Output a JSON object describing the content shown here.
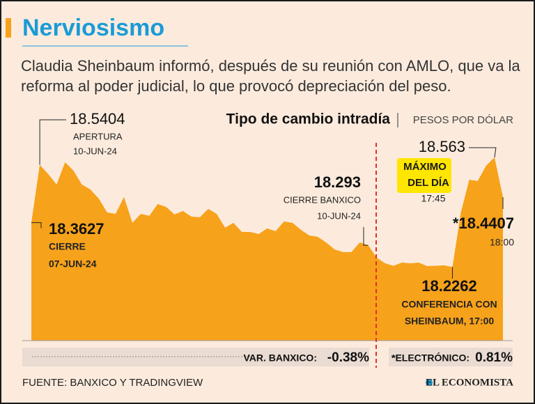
{
  "chart_data": {
    "type": "area",
    "title": "Nerviosismo",
    "subtitle": "Claudia Sheinbaum informó, después de su reunión con AMLO, que va la reforma al poder judicial, lo que provocó depreciación del peso.",
    "chart_title": "Tipo de cambio intradía",
    "unit": "PESOS POR DÓLAR",
    "color": "#f7a21b",
    "ylim": [
      18.0,
      18.7
    ],
    "values": [
      18.3627,
      18.5404,
      18.5118,
      18.4797,
      18.5482,
      18.5225,
      18.4797,
      18.4647,
      18.4368,
      18.394,
      18.3897,
      18.4411,
      18.3619,
      18.3897,
      18.3833,
      18.4197,
      18.4111,
      18.3876,
      18.3983,
      18.3812,
      18.379,
      18.4047,
      18.3897,
      18.3469,
      18.3619,
      18.334,
      18.334,
      18.3276,
      18.3448,
      18.3362,
      18.3662,
      18.3619,
      18.3405,
      18.3233,
      18.3191,
      18.3019,
      18.2805,
      18.272,
      18.272,
      18.3019,
      18.293,
      18.2548,
      18.2377,
      18.23,
      18.2398,
      18.2377,
      18.2398,
      18.229,
      18.23,
      18.2313,
      18.2262,
      18.394,
      18.4946,
      18.4904,
      18.5375,
      18.563,
      18.4407
    ],
    "value_labels": [
      null,
      null,
      null,
      null,
      null,
      null,
      null,
      null,
      null,
      null,
      null,
      null,
      null,
      null,
      null,
      null,
      null,
      null,
      null,
      null,
      null,
      null,
      null,
      null,
      null,
      null,
      null,
      null,
      null,
      null,
      null,
      null,
      null,
      null,
      null,
      null,
      null,
      null,
      null,
      null,
      null,
      null,
      null,
      null,
      null,
      null,
      null,
      null,
      null,
      null,
      null,
      null,
      null,
      null,
      null,
      null,
      "*18.4407"
    ],
    "notes": [
      [
        "CIERRE",
        "07-JUN-24"
      ],
      [
        "APERTURA",
        "10-JUN-24"
      ],
      null,
      null,
      null,
      null,
      null,
      null,
      null,
      null,
      null,
      null,
      null,
      null,
      null,
      null,
      null,
      null,
      null,
      null,
      null,
      null,
      null,
      null,
      null,
      null,
      null,
      null,
      null,
      null,
      null,
      null,
      null,
      null,
      null,
      null,
      null,
      null,
      null,
      null,
      [
        "CIERRE BANXICO",
        "10-JUN-24"
      ],
      null,
      null,
      null,
      null,
      null,
      null,
      null,
      null,
      null,
      [
        "CONFERENCIA CON",
        "SHEINBAUM, 17:00"
      ],
      null,
      null,
      null,
      null,
      [
        "MÁXIMO",
        "DEL DÍA",
        "17:45"
      ],
      [
        "18:00"
      ]
    ],
    "stats": [
      {
        "label": "VAR. BANXICO:",
        "value": "-0.38%"
      },
      {
        "label": "*ELECTRÓNICO:",
        "value": "0.81%"
      }
    ],
    "source": "FUENTE: BANXICO Y TRADINGVIEW",
    "brand": "EL ECONOMISTA"
  }
}
